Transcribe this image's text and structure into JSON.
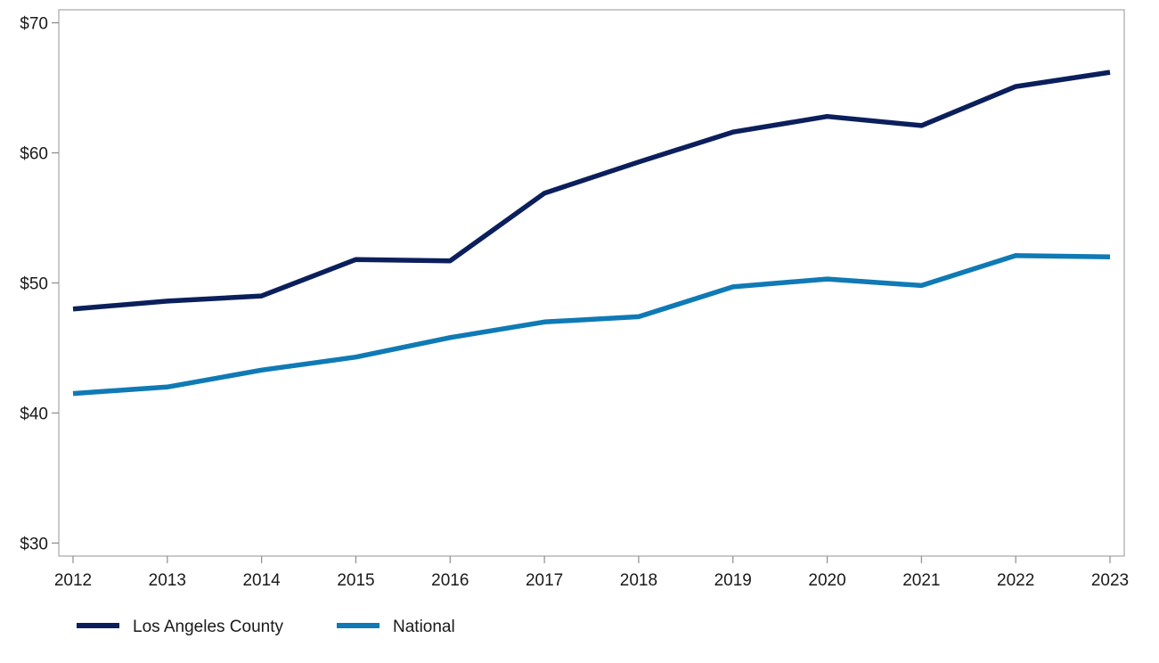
{
  "chart_data": {
    "type": "line",
    "x": [
      "2012",
      "2013",
      "2014",
      "2015",
      "2016",
      "2017",
      "2018",
      "2019",
      "2020",
      "2021",
      "2022",
      "2023"
    ],
    "ylim": [
      29,
      71
    ],
    "yticks": [
      30,
      40,
      50,
      60,
      70
    ],
    "ytick_labels": [
      "$30",
      "$40",
      "$50",
      "$60",
      "$70"
    ],
    "grid": false,
    "legend_position": "bottom-left",
    "series": [
      {
        "name": "Los Angeles County",
        "color": "#0b1f5c",
        "values": [
          48.0,
          48.6,
          49.0,
          51.8,
          51.7,
          56.9,
          59.3,
          61.6,
          62.8,
          62.1,
          65.1,
          66.2
        ]
      },
      {
        "name": "National",
        "color": "#0f7ab5",
        "values": [
          41.5,
          42.0,
          43.3,
          44.3,
          45.8,
          47.0,
          47.4,
          49.7,
          50.3,
          49.8,
          52.1,
          52.0
        ]
      }
    ]
  }
}
